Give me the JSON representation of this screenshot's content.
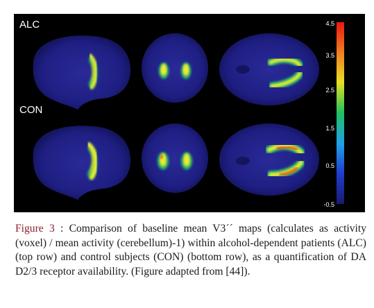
{
  "figure": {
    "rows": [
      {
        "label": "ALC"
      },
      {
        "label": "CON"
      }
    ],
    "colorbar": {
      "ticks": [
        "4.5",
        "3.5",
        "2.5",
        "1.5",
        "0.5",
        "-0.5"
      ],
      "colors": [
        "#1a1a70",
        "#1e3fd0",
        "#1fa0e8",
        "#20c060",
        "#e8e020",
        "#f08020",
        "#e81810"
      ]
    }
  },
  "caption": {
    "lead": "Figure 3",
    "separator": " : ",
    "text": "Comparison of baseline mean V3´´ maps (calculates as activity (voxel) / mean activity (cerebellum)-1) within alcohol-dependent patients (ALC) (top row) and control subjects (CON) (bottom row), as a quantification of DA D2/3 receptor availability. (Figure adapted from [44])."
  }
}
